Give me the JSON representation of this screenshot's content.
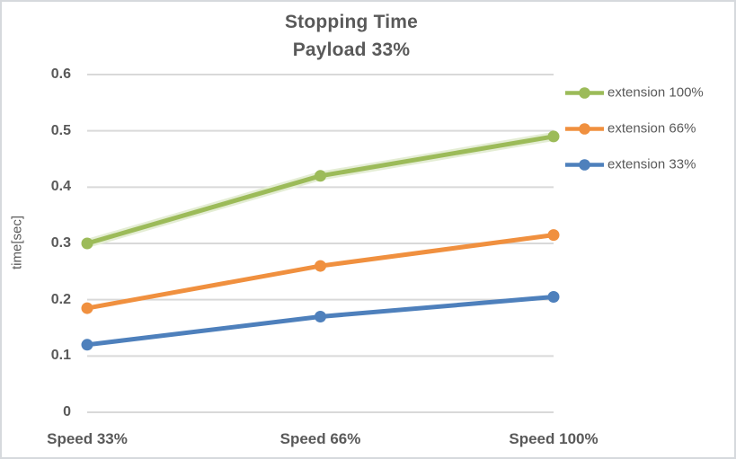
{
  "chart_data": {
    "type": "line",
    "title": "Stopping Time",
    "subtitle": "Payload 33%",
    "xlabel": "",
    "ylabel": "time[sec]",
    "categories": [
      "Speed 33%",
      "Speed 66%",
      "Speed 100%"
    ],
    "series": [
      {
        "name": "extension 100%",
        "color": "#9cbb59",
        "shadow_color": "#e4edd4",
        "values": [
          0.3,
          0.42,
          0.49
        ]
      },
      {
        "name": "extension 66%",
        "color": "#f0903f",
        "values": [
          0.185,
          0.26,
          0.315
        ]
      },
      {
        "name": "extension 33%",
        "color": "#4e80bc",
        "values": [
          0.12,
          0.17,
          0.205
        ]
      }
    ],
    "ylim": [
      0,
      0.6
    ],
    "yticks": [
      0,
      0.1,
      0.2,
      0.3,
      0.4,
      0.5,
      0.6
    ],
    "ytick_labels": [
      "0",
      "0.1",
      "0.2",
      "0.3",
      "0.4",
      "0.5",
      "0.6"
    ],
    "grid": true,
    "legend_position": "right",
    "marker": "circle",
    "text_color": "#595959",
    "grid_color": "#d9d9d9"
  }
}
